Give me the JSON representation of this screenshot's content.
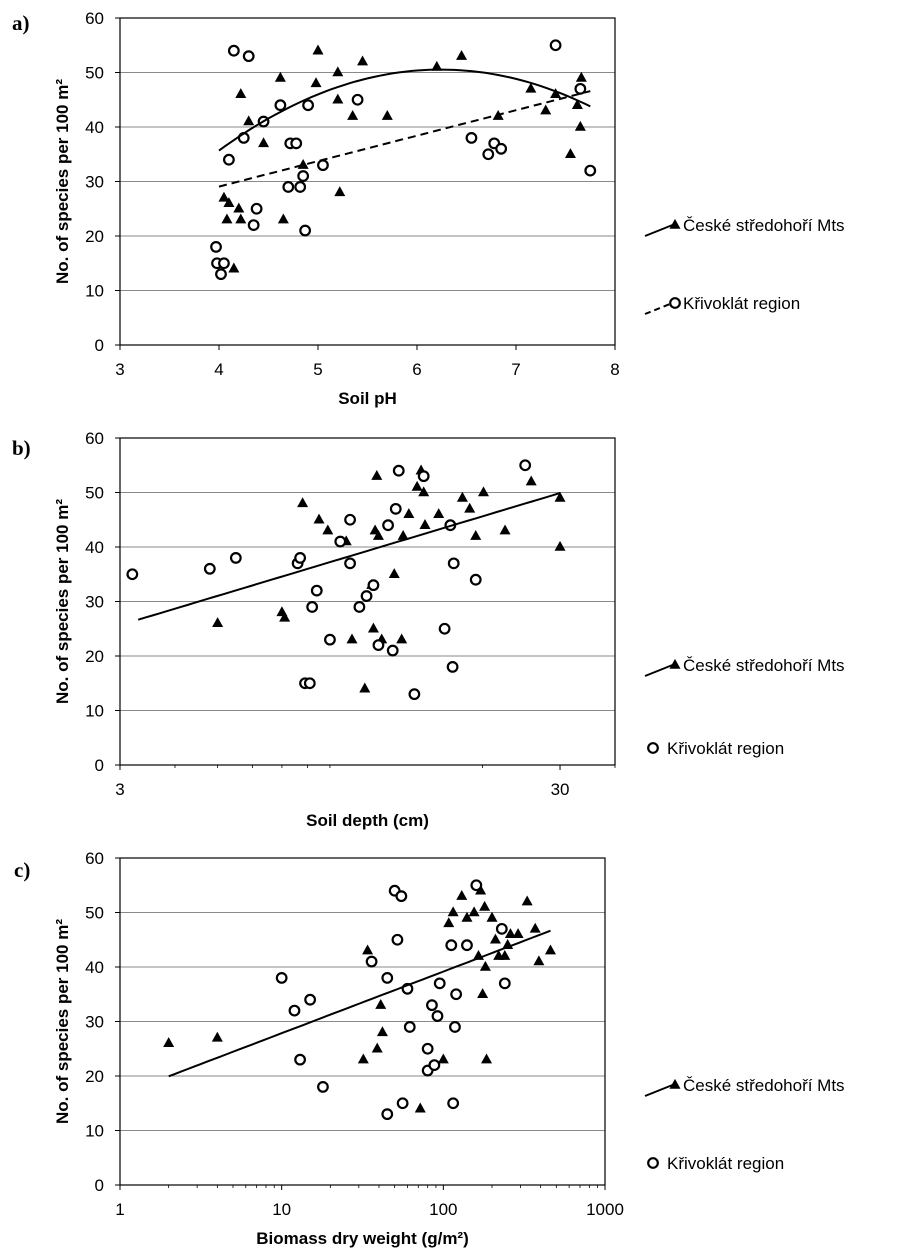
{
  "chart_data": [
    {
      "panel": "a)",
      "type": "scatter",
      "xlabel": "Soil pH",
      "ylabel": "No. of species per 100 m²",
      "xlim": [
        3,
        8
      ],
      "ylim": [
        0,
        60
      ],
      "xscale": "linear",
      "xticks": [
        "3",
        "4",
        "5",
        "6",
        "7",
        "8"
      ],
      "yticks": [
        "0",
        "10",
        "20",
        "30",
        "40",
        "50",
        "60"
      ],
      "grid": "horizontal",
      "legend": "right",
      "series": [
        {
          "name": "České středohoří Mts",
          "marker": "triangle",
          "points": [
            [
              4.05,
              27
            ],
            [
              4.08,
              23
            ],
            [
              4.1,
              26
            ],
            [
              4.15,
              14
            ],
            [
              4.2,
              25
            ],
            [
              4.22,
              23
            ],
            [
              4.22,
              46
            ],
            [
              4.3,
              41
            ],
            [
              4.45,
              37
            ],
            [
              4.62,
              49
            ],
            [
              4.65,
              23
            ],
            [
              4.85,
              33
            ],
            [
              4.98,
              48
            ],
            [
              5.0,
              54
            ],
            [
              5.2,
              45
            ],
            [
              5.2,
              50
            ],
            [
              5.22,
              28
            ],
            [
              5.35,
              42
            ],
            [
              5.45,
              52
            ],
            [
              5.7,
              42
            ],
            [
              6.2,
              51
            ],
            [
              6.45,
              53
            ],
            [
              6.82,
              42
            ],
            [
              7.15,
              47
            ],
            [
              7.3,
              43
            ],
            [
              7.4,
              46
            ],
            [
              7.55,
              35
            ],
            [
              7.62,
              44
            ],
            [
              7.65,
              40
            ],
            [
              7.66,
              49
            ]
          ]
        },
        {
          "name": "Křivoklát region",
          "marker": "circle",
          "points": [
            [
              3.97,
              18
            ],
            [
              3.98,
              15
            ],
            [
              4.02,
              13
            ],
            [
              4.05,
              15
            ],
            [
              4.1,
              34
            ],
            [
              4.15,
              54
            ],
            [
              4.25,
              38
            ],
            [
              4.3,
              53
            ],
            [
              4.35,
              22
            ],
            [
              4.38,
              25
            ],
            [
              4.45,
              41
            ],
            [
              4.62,
              44
            ],
            [
              4.7,
              29
            ],
            [
              4.72,
              37
            ],
            [
              4.78,
              37
            ],
            [
              4.82,
              29
            ],
            [
              4.85,
              31
            ],
            [
              4.87,
              21
            ],
            [
              4.9,
              44
            ],
            [
              5.05,
              33
            ],
            [
              5.4,
              45
            ],
            [
              6.55,
              38
            ],
            [
              6.72,
              35
            ],
            [
              6.78,
              37
            ],
            [
              6.85,
              36
            ],
            [
              7.4,
              55
            ],
            [
              7.65,
              47
            ],
            [
              7.75,
              32
            ]
          ]
        }
      ],
      "fits": [
        {
          "series": "České středohoří Mts",
          "kind": "quadratic",
          "style": "solid",
          "x_from": 4.0,
          "x_to": 7.75,
          "coef": [
            -64.82,
            36.976,
            -2.963
          ]
        },
        {
          "series": "Křivoklát region",
          "kind": "linear",
          "style": "dashed",
          "x_from": 4.0,
          "x_to": 7.75,
          "coef": [
            10.39,
            4.67
          ]
        }
      ]
    },
    {
      "panel": "b)",
      "type": "scatter",
      "xlabel": "Soil depth (cm)",
      "ylabel": "No. of species per 100 m²",
      "xlim": [
        3,
        40
      ],
      "ylim": [
        0,
        60
      ],
      "xscale": "log",
      "xticks": [
        "3",
        "30"
      ],
      "yticks": [
        "0",
        "10",
        "20",
        "30",
        "40",
        "50",
        "60"
      ],
      "grid": "horizontal",
      "legend": "right",
      "series": [
        {
          "name": "České středohoří Mts",
          "marker": "triangle",
          "points": [
            [
              5.0,
              26
            ],
            [
              7.0,
              28
            ],
            [
              7.1,
              27
            ],
            [
              7.8,
              48
            ],
            [
              8.5,
              45
            ],
            [
              8.9,
              43
            ],
            [
              9.8,
              41
            ],
            [
              10.1,
              23
            ],
            [
              10.8,
              14
            ],
            [
              11.2,
              33
            ],
            [
              11.3,
              25
            ],
            [
              11.4,
              43
            ],
            [
              11.5,
              53
            ],
            [
              11.6,
              42
            ],
            [
              11.8,
              23
            ],
            [
              12.6,
              35
            ],
            [
              13.1,
              23
            ],
            [
              13.2,
              42
            ],
            [
              13.6,
              46
            ],
            [
              14.2,
              51
            ],
            [
              14.5,
              54
            ],
            [
              14.7,
              50
            ],
            [
              14.8,
              44
            ],
            [
              15.9,
              46
            ],
            [
              18.0,
              49
            ],
            [
              18.7,
              47
            ],
            [
              19.3,
              42
            ],
            [
              20.1,
              50
            ],
            [
              22.5,
              43
            ],
            [
              25.8,
              52
            ],
            [
              30.0,
              49
            ],
            [
              30.0,
              40
            ]
          ]
        },
        {
          "name": "Křivoklát region",
          "marker": "circle",
          "points": [
            [
              3.2,
              35
            ],
            [
              4.8,
              36
            ],
            [
              5.5,
              38
            ],
            [
              7.6,
              37
            ],
            [
              7.7,
              38
            ],
            [
              7.9,
              15
            ],
            [
              8.1,
              15
            ],
            [
              8.2,
              29
            ],
            [
              8.4,
              32
            ],
            [
              9.0,
              23
            ],
            [
              9.5,
              41
            ],
            [
              10.0,
              45
            ],
            [
              10.0,
              37
            ],
            [
              10.5,
              29
            ],
            [
              10.9,
              31
            ],
            [
              11.3,
              33
            ],
            [
              11.6,
              22
            ],
            [
              12.2,
              44
            ],
            [
              12.5,
              21
            ],
            [
              12.7,
              47
            ],
            [
              12.9,
              54
            ],
            [
              14.0,
              13
            ],
            [
              14.7,
              53
            ],
            [
              16.4,
              25
            ],
            [
              16.9,
              44
            ],
            [
              17.1,
              18
            ],
            [
              17.2,
              37
            ],
            [
              19.3,
              34
            ],
            [
              25.0,
              55
            ]
          ]
        }
      ],
      "fits": [
        {
          "series": "all",
          "kind": "log-linear",
          "style": "solid",
          "x_from": 3.3,
          "x_to": 30,
          "coef": [
            14.08,
            24.25
          ]
        }
      ]
    },
    {
      "panel": "c)",
      "type": "scatter",
      "xlabel": "Biomass dry weight (g/m²)",
      "ylabel": "No. of species per 100 m²",
      "xlim": [
        1,
        1000
      ],
      "ylim": [
        0,
        60
      ],
      "xscale": "log",
      "xticks": [
        "1",
        "10",
        "100",
        "1000"
      ],
      "yticks": [
        "0",
        "10",
        "20",
        "30",
        "40",
        "50",
        "60"
      ],
      "grid": "horizontal",
      "legend": "right",
      "series": [
        {
          "name": "České středohoří Mts",
          "marker": "triangle",
          "points": [
            [
              2,
              26
            ],
            [
              4,
              27
            ],
            [
              32,
              23
            ],
            [
              34,
              43
            ],
            [
              39,
              25
            ],
            [
              41,
              33
            ],
            [
              42,
              28
            ],
            [
              72,
              14
            ],
            [
              100,
              23
            ],
            [
              108,
              48
            ],
            [
              115,
              50
            ],
            [
              130,
              53
            ],
            [
              140,
              49
            ],
            [
              155,
              50
            ],
            [
              165,
              42
            ],
            [
              170,
              54
            ],
            [
              175,
              35
            ],
            [
              180,
              51
            ],
            [
              182,
              40
            ],
            [
              185,
              23
            ],
            [
              200,
              49
            ],
            [
              210,
              45
            ],
            [
              220,
              42
            ],
            [
              240,
              42
            ],
            [
              250,
              44
            ],
            [
              260,
              46
            ],
            [
              290,
              46
            ],
            [
              330,
              52
            ],
            [
              370,
              47
            ],
            [
              390,
              41
            ],
            [
              460,
              43
            ]
          ]
        },
        {
          "name": "Křivoklát region",
          "marker": "circle",
          "points": [
            [
              10,
              38
            ],
            [
              12,
              32
            ],
            [
              13,
              23
            ],
            [
              15,
              34
            ],
            [
              18,
              18
            ],
            [
              36,
              41
            ],
            [
              45,
              38
            ],
            [
              45,
              13
            ],
            [
              50,
              54
            ],
            [
              52,
              45
            ],
            [
              55,
              53
            ],
            [
              56,
              15
            ],
            [
              60,
              36
            ],
            [
              62,
              29
            ],
            [
              80,
              25
            ],
            [
              80,
              21
            ],
            [
              85,
              33
            ],
            [
              88,
              22
            ],
            [
              92,
              31
            ],
            [
              95,
              37
            ],
            [
              112,
              44
            ],
            [
              115,
              15
            ],
            [
              118,
              29
            ],
            [
              120,
              35
            ],
            [
              140,
              44
            ],
            [
              160,
              55
            ],
            [
              230,
              47
            ],
            [
              240,
              37
            ]
          ]
        }
      ],
      "fits": [
        {
          "series": "all",
          "kind": "log-linear",
          "style": "solid",
          "x_from": 2,
          "x_to": 460,
          "coef": [
            16.54,
            11.31
          ]
        }
      ]
    }
  ]
}
